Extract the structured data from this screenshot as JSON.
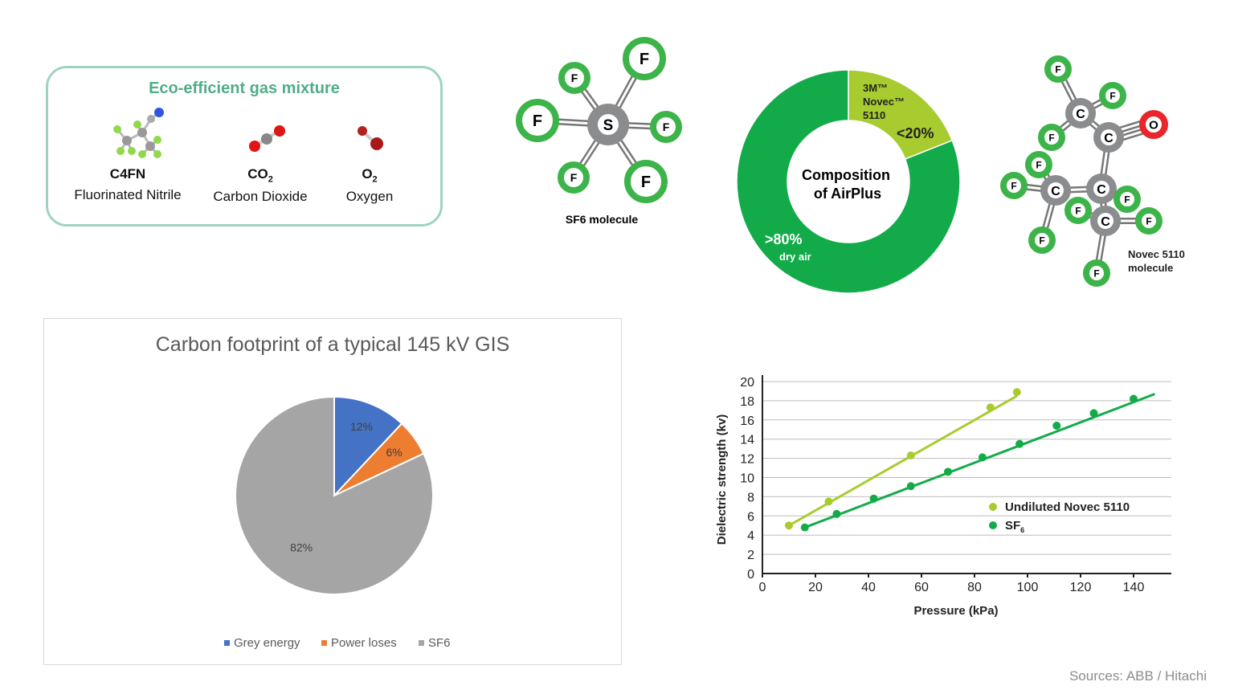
{
  "gas_mixture": {
    "title": "Eco-efficient gas mixture",
    "gases": [
      {
        "formula": "C4FN",
        "subscript": "",
        "name": "Fluorinated Nitrile"
      },
      {
        "formula": "CO",
        "subscript": "2",
        "name": "Carbon Dioxide"
      },
      {
        "formula": "O",
        "subscript": "2",
        "name": "Oxygen"
      }
    ]
  },
  "sf6_molecule": {
    "label": "SF6 molecule",
    "central_atom": "S",
    "ligand_atom": "F"
  },
  "novec_molecule": {
    "label_line1": "Novec 5110",
    "label_line2": "molecule",
    "carbon": "C",
    "fluorine": "F",
    "oxygen": "O"
  },
  "colors": {
    "green": "#13ab4a",
    "lime": "#a8cc2f",
    "atom_green": "#3cb44a",
    "oxygen_red": "#e8262b",
    "bond_gray": "#8a8c8e",
    "box_border": "#9fd3bf",
    "title_green": "#4fae86"
  },
  "chart_data": [
    {
      "type": "pie",
      "title": "Carbon footprint of a typical 145 kV GIS",
      "categories": [
        "Grey energy",
        "Power loses",
        "SF6"
      ],
      "values": [
        12,
        6,
        82
      ],
      "data_labels": [
        "12%",
        "6%",
        "82%"
      ],
      "colors": [
        "#4472c4",
        "#ed7d31",
        "#a5a5a5"
      ],
      "legend": "bottom"
    },
    {
      "type": "pie",
      "donut": true,
      "center_label_line1": "Composition",
      "center_label_line2": "of AirPlus",
      "segments": [
        {
          "label_lines": [
            "3M™",
            "Novec™",
            "5110"
          ],
          "value_label": "<20%",
          "value": 19,
          "color": "#a8cc2f"
        },
        {
          "label_lines": [
            "dry air"
          ],
          "value_label": ">80%",
          "value": 81,
          "color": "#13ab4a"
        }
      ]
    },
    {
      "type": "scatter",
      "xlabel": "Pressure (kPa)",
      "ylabel": "Dielectric strength (kv)",
      "xlim": [
        0,
        150
      ],
      "ylim": [
        0,
        20
      ],
      "xticks": [
        0,
        20,
        40,
        60,
        80,
        100,
        120,
        140
      ],
      "yticks": [
        0,
        2,
        4,
        6,
        8,
        10,
        12,
        14,
        16,
        18,
        20
      ],
      "grid": "horizontal",
      "legend": "center-right",
      "series": [
        {
          "name": "Undiluted Novec 5110",
          "name_sub": "",
          "color": "#a8cc2f",
          "x": [
            10,
            25,
            56,
            86,
            96
          ],
          "y": [
            5.0,
            7.5,
            12.3,
            17.3,
            18.9
          ],
          "fit": {
            "x": [
              10,
              96
            ],
            "y": [
              5.0,
              18.5
            ]
          }
        },
        {
          "name": "SF",
          "name_sub": "6",
          "color": "#13ab4a",
          "x": [
            16,
            28,
            42,
            56,
            70,
            83,
            97,
            111,
            125,
            140
          ],
          "y": [
            4.8,
            6.2,
            7.8,
            9.1,
            10.6,
            12.1,
            13.5,
            15.4,
            16.7,
            18.2
          ],
          "fit": {
            "x": [
              16,
              148
            ],
            "y": [
              4.8,
              18.7
            ]
          }
        }
      ]
    }
  ],
  "footer": {
    "sources": "Sources: ABB / Hitachi"
  }
}
